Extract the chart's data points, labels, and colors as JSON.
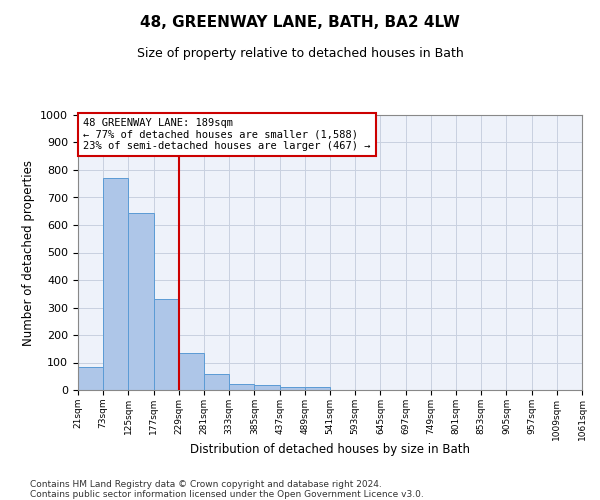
{
  "title": "48, GREENWAY LANE, BATH, BA2 4LW",
  "subtitle": "Size of property relative to detached houses in Bath",
  "xlabel": "Distribution of detached houses by size in Bath",
  "ylabel": "Number of detached properties",
  "bar_values": [
    83,
    770,
    643,
    330,
    133,
    58,
    22,
    19,
    11,
    10,
    0,
    0,
    0,
    0,
    0,
    0,
    0,
    0,
    0,
    0
  ],
  "categories": [
    "21sqm",
    "73sqm",
    "125sqm",
    "177sqm",
    "229sqm",
    "281sqm",
    "333sqm",
    "385sqm",
    "437sqm",
    "489sqm",
    "541sqm",
    "593sqm",
    "645sqm",
    "697sqm",
    "749sqm",
    "801sqm",
    "853sqm",
    "905sqm",
    "957sqm",
    "1009sqm",
    "1061sqm"
  ],
  "bar_color": "#aec6e8",
  "bar_edgecolor": "#5b9bd5",
  "vline_color": "#cc0000",
  "vline_position": 3,
  "ylim": [
    0,
    1000
  ],
  "yticks": [
    0,
    100,
    200,
    300,
    400,
    500,
    600,
    700,
    800,
    900,
    1000
  ],
  "annotation_title": "48 GREENWAY LANE: 189sqm",
  "annotation_line1": "← 77% of detached houses are smaller (1,588)",
  "annotation_line2": "23% of semi-detached houses are larger (467) →",
  "annotation_box_color": "#ffffff",
  "annotation_box_edgecolor": "#cc0000",
  "footnote1": "Contains HM Land Registry data © Crown copyright and database right 2024.",
  "footnote2": "Contains public sector information licensed under the Open Government Licence v3.0.",
  "grid_color": "#c8d0e0",
  "background_color": "#eef2fa"
}
